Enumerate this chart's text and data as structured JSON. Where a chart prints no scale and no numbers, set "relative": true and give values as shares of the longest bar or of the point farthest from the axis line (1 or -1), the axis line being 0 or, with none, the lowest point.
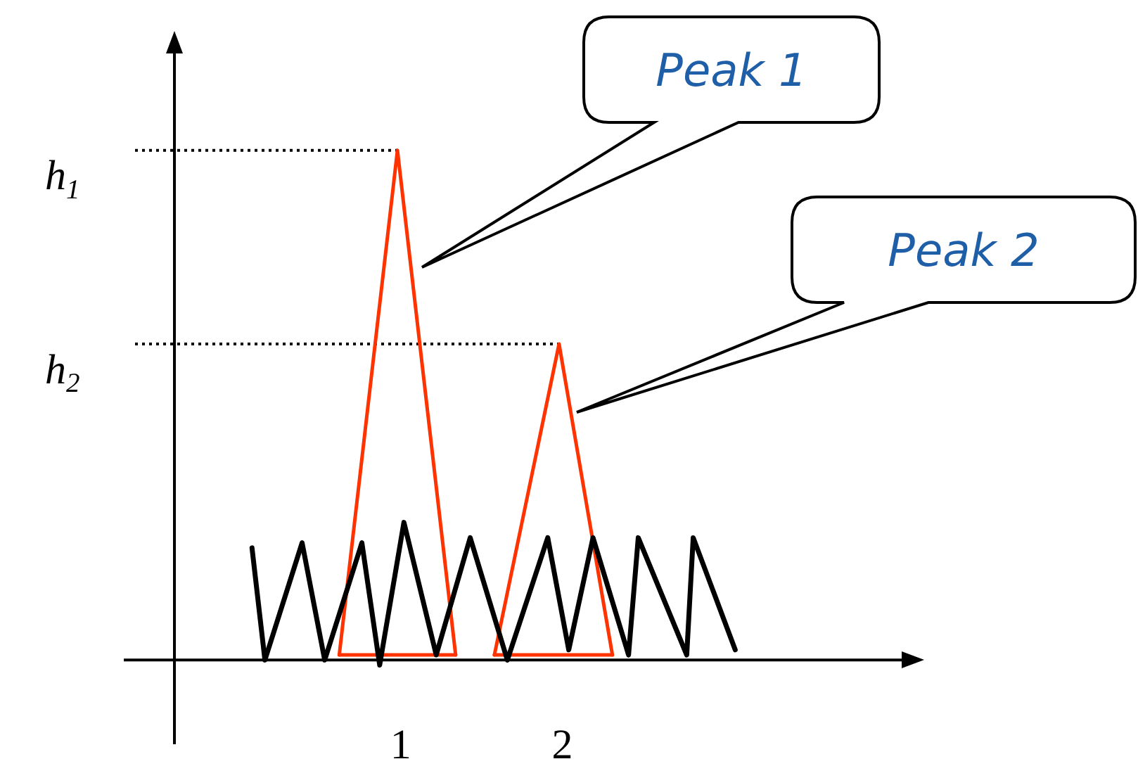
{
  "chart_data": {
    "type": "line",
    "relative": true,
    "grid": false,
    "legend": false,
    "marker": "none",
    "line_style": "solid",
    "xlim": [
      -0.4,
      4.1
    ],
    "xticks": [
      1,
      2
    ],
    "tick_labels": "x",
    "series": [
      {
        "color": "#000000",
        "x": [
          0.08,
          0.16,
          0.39,
          0.53,
          0.76,
          0.87,
          1.02,
          1.22,
          1.43,
          1.66,
          1.91,
          2.04,
          2.19,
          2.41,
          2.47,
          2.77,
          2.81,
          3.07
        ],
        "values": [
          0.22,
          0.0,
          0.23,
          0.0,
          0.23,
          -0.01,
          0.27,
          0.01,
          0.24,
          0.0,
          0.24,
          0.02,
          0.24,
          0.01,
          0.24,
          0.01,
          0.24,
          0.02
        ]
      },
      {
        "color": "#ff3300",
        "x": [
          0.62,
          0.98,
          1.34
        ],
        "values": [
          0.01,
          1,
          0.01
        ]
      },
      {
        "color": "#ff3300",
        "x": [
          0.62,
          1.34
        ],
        "values": [
          0.01,
          0.01
        ]
      },
      {
        "color": "#ff3300",
        "x": [
          1.58,
          1.98,
          2.31
        ],
        "values": [
          0.01,
          0.62,
          0.01
        ]
      },
      {
        "color": "#ff3300",
        "x": [
          1.58,
          2.31
        ],
        "values": [
          0.01,
          0.01
        ]
      }
    ],
    "ref_lines": [
      {
        "axis": "y",
        "value": 1,
        "label": "h$_{1}$",
        "line_style": "dotted"
      },
      {
        "axis": "y",
        "value": 0.62,
        "label": "h$_{2}$",
        "line_style": "dotted"
      }
    ],
    "annotations": [
      "Peak 1",
      "Peak 2"
    ]
  }
}
